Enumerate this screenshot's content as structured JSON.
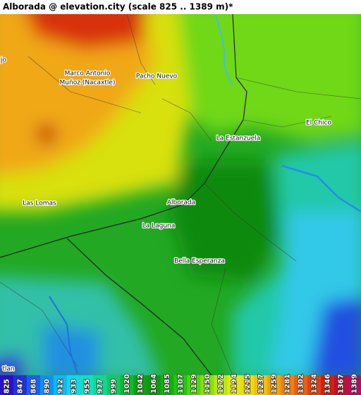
{
  "title": "Alborada @ elevation.city (scale 825 .. 1389 m)*",
  "places": [
    {
      "lines": [
        "Marco Antonio",
        "Muñoz (Nacaxtle)"
      ]
    },
    {
      "lines": [
        "Pacho Nuevo"
      ]
    },
    {
      "lines": [
        "La Estanzuela"
      ]
    },
    {
      "lines": [
        "El Chico"
      ]
    },
    {
      "lines": [
        "Las Lomas"
      ]
    },
    {
      "lines": [
        "Alborada"
      ]
    },
    {
      "lines": [
        "La Laguna"
      ]
    },
    {
      "lines": [
        "Bella Esperanza"
      ]
    },
    {
      "lines": [
        "jo"
      ]
    },
    {
      "lines": [
        "tlan"
      ]
    }
  ],
  "legend": [
    {
      "value": 825,
      "color": "#2a10c8"
    },
    {
      "value": 847,
      "color": "#2030e0"
    },
    {
      "value": 868,
      "color": "#1860f0"
    },
    {
      "value": 890,
      "color": "#1090f0"
    },
    {
      "value": 912,
      "color": "#10b8f0"
    },
    {
      "value": 933,
      "color": "#10d8e8"
    },
    {
      "value": 955,
      "color": "#10e0c0"
    },
    {
      "value": 977,
      "color": "#10d890"
    },
    {
      "value": 999,
      "color": "#10c860"
    },
    {
      "value": 1020,
      "color": "#10b830"
    },
    {
      "value": 1042,
      "color": "#10a010"
    },
    {
      "value": 1064,
      "color": "#109810"
    },
    {
      "value": 1085,
      "color": "#10b010"
    },
    {
      "value": 1107,
      "color": "#20c810"
    },
    {
      "value": 1129,
      "color": "#50d810"
    },
    {
      "value": 1150,
      "color": "#88e010"
    },
    {
      "value": 1172,
      "color": "#b8e810"
    },
    {
      "value": 1194,
      "color": "#e0e810"
    },
    {
      "value": 1215,
      "color": "#f0d810"
    },
    {
      "value": 1237,
      "color": "#f0c010"
    },
    {
      "value": 1259,
      "color": "#f0a010"
    },
    {
      "value": 1281,
      "color": "#f08010"
    },
    {
      "value": 1302,
      "color": "#e86010"
    },
    {
      "value": 1324,
      "color": "#e04010"
    },
    {
      "value": 1346,
      "color": "#d02010"
    },
    {
      "value": 1367,
      "color": "#c01030"
    },
    {
      "value": 1389,
      "color": "#b01060"
    }
  ]
}
